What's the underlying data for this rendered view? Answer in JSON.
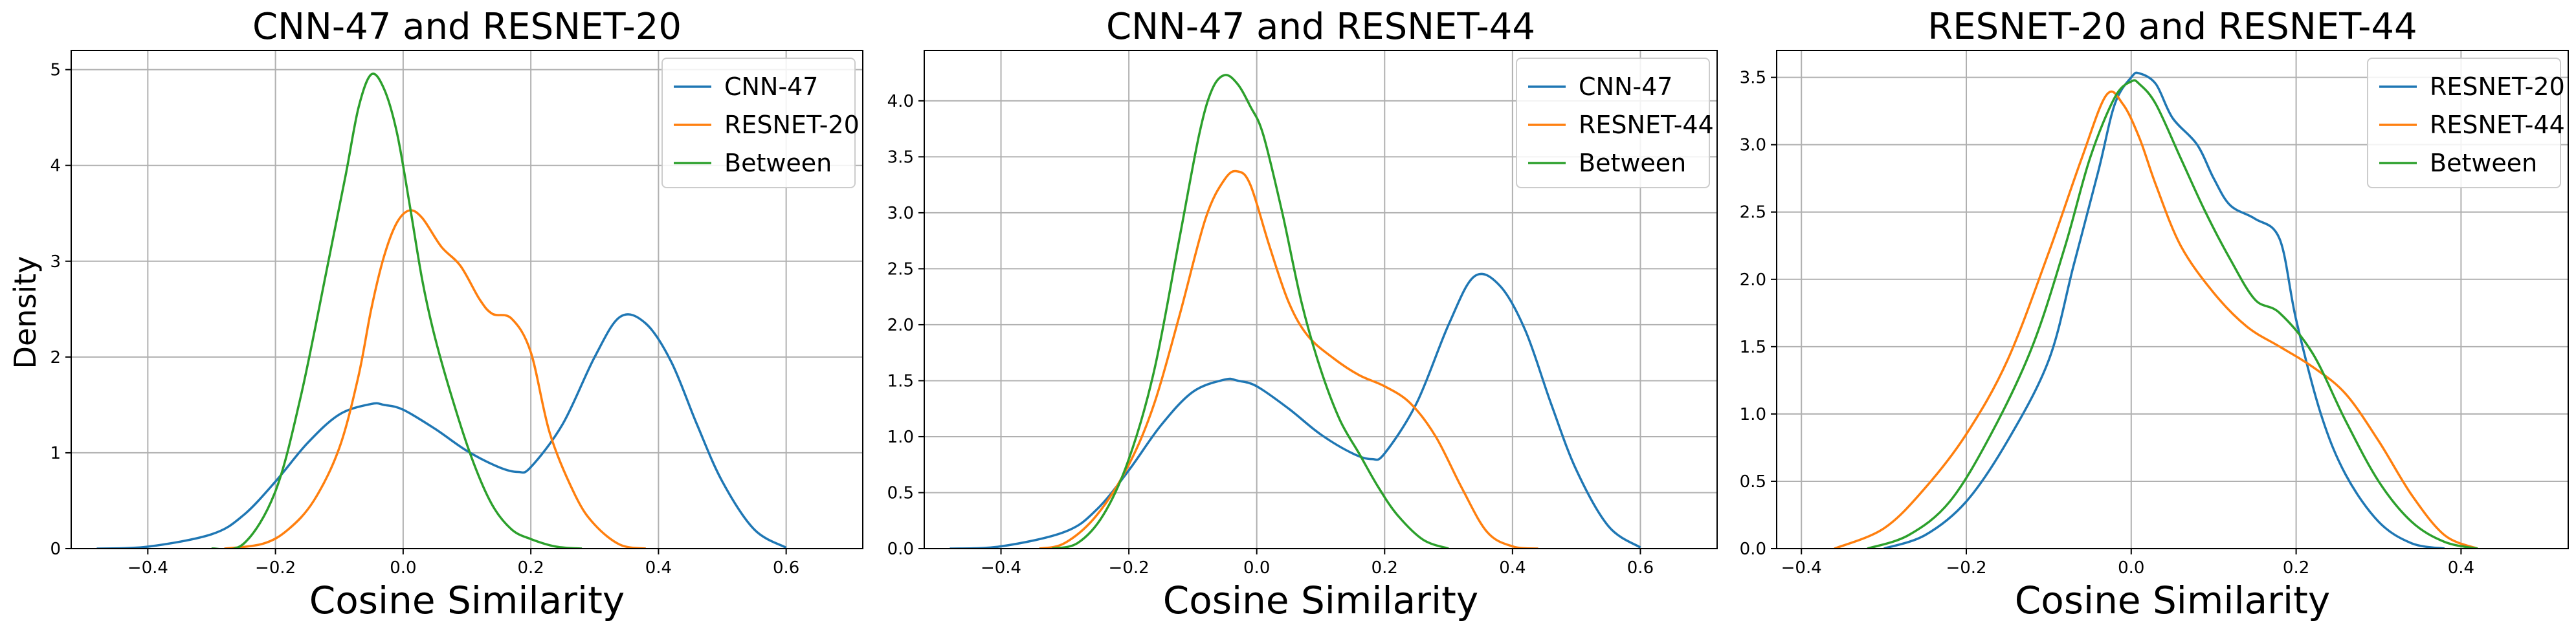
{
  "figure": {
    "ylabel": "Density"
  },
  "chart_data": [
    {
      "type": "line",
      "title": "CNN-47 and RESNET-20",
      "xlabel": "Cosine Similarity",
      "ylabel": "Density",
      "xlim": [
        -0.52,
        0.72
      ],
      "ylim": [
        0,
        5.2
      ],
      "xticks": [
        -0.4,
        -0.2,
        0.0,
        0.2,
        0.4,
        0.6
      ],
      "xtick_labels": [
        "−0.4",
        "−0.2",
        "0.0",
        "0.2",
        "0.4",
        "0.6"
      ],
      "yticks": [
        0,
        1,
        2,
        3,
        4,
        5
      ],
      "ytick_labels": [
        "0",
        "1",
        "2",
        "3",
        "4",
        "5"
      ],
      "grid": true,
      "legend_position": "top-right",
      "series": [
        {
          "name": "CNN-47",
          "color": "#1f77b4",
          "x": [
            -0.48,
            -0.4,
            -0.3,
            -0.25,
            -0.2,
            -0.15,
            -0.1,
            -0.05,
            -0.03,
            0.0,
            0.05,
            0.1,
            0.15,
            0.18,
            0.2,
            0.25,
            0.3,
            0.34,
            0.38,
            0.42,
            0.46,
            0.5,
            0.55,
            0.6
          ],
          "y": [
            0.0,
            0.02,
            0.15,
            0.35,
            0.7,
            1.1,
            1.4,
            1.51,
            1.5,
            1.45,
            1.25,
            1.02,
            0.85,
            0.8,
            0.85,
            1.3,
            2.0,
            2.42,
            2.35,
            1.95,
            1.3,
            0.7,
            0.2,
            0.01
          ]
        },
        {
          "name": "RESNET-20",
          "color": "#ff7f0e",
          "x": [
            -0.28,
            -0.22,
            -0.18,
            -0.14,
            -0.1,
            -0.07,
            -0.05,
            -0.03,
            -0.01,
            0.01,
            0.03,
            0.06,
            0.09,
            0.12,
            0.14,
            0.17,
            0.2,
            0.23,
            0.27,
            0.3,
            0.34,
            0.38
          ],
          "y": [
            0.0,
            0.05,
            0.2,
            0.5,
            1.05,
            1.8,
            2.5,
            3.05,
            3.4,
            3.53,
            3.45,
            3.15,
            2.95,
            2.6,
            2.45,
            2.4,
            2.05,
            1.2,
            0.55,
            0.25,
            0.04,
            0.0
          ]
        },
        {
          "name": "Between",
          "color": "#2ca02c",
          "x": [
            -0.3,
            -0.25,
            -0.2,
            -0.16,
            -0.12,
            -0.09,
            -0.07,
            -0.05,
            -0.03,
            -0.01,
            0.01,
            0.03,
            0.05,
            0.08,
            0.11,
            0.14,
            0.17,
            0.2,
            0.24,
            0.28
          ],
          "y": [
            0.0,
            0.05,
            0.6,
            1.6,
            2.9,
            3.9,
            4.6,
            4.95,
            4.8,
            4.35,
            3.6,
            2.8,
            2.2,
            1.5,
            0.9,
            0.45,
            0.2,
            0.1,
            0.02,
            0.0
          ]
        }
      ]
    },
    {
      "type": "line",
      "title": "CNN-47 and RESNET-44",
      "xlabel": "Cosine Similarity",
      "ylabel": "",
      "xlim": [
        -0.52,
        0.72
      ],
      "ylim": [
        0,
        4.45
      ],
      "xticks": [
        -0.4,
        -0.2,
        0.0,
        0.2,
        0.4,
        0.6
      ],
      "xtick_labels": [
        "−0.4",
        "−0.2",
        "0.0",
        "0.2",
        "0.4",
        "0.6"
      ],
      "yticks": [
        0,
        0.5,
        1.0,
        1.5,
        2.0,
        2.5,
        3.0,
        3.5,
        4.0
      ],
      "ytick_labels": [
        "0.0",
        "0.5",
        "1.0",
        "1.5",
        "2.0",
        "2.5",
        "3.0",
        "3.5",
        "4.0"
      ],
      "grid": true,
      "legend_position": "top-right",
      "series": [
        {
          "name": "CNN-47",
          "color": "#1f77b4",
          "x": [
            -0.48,
            -0.4,
            -0.3,
            -0.25,
            -0.2,
            -0.15,
            -0.1,
            -0.05,
            -0.03,
            0.0,
            0.05,
            0.1,
            0.15,
            0.18,
            0.2,
            0.25,
            0.3,
            0.34,
            0.38,
            0.42,
            0.46,
            0.5,
            0.55,
            0.6
          ],
          "y": [
            0.0,
            0.02,
            0.15,
            0.35,
            0.7,
            1.1,
            1.4,
            1.51,
            1.5,
            1.45,
            1.25,
            1.02,
            0.85,
            0.8,
            0.85,
            1.3,
            2.0,
            2.43,
            2.35,
            1.95,
            1.3,
            0.7,
            0.2,
            0.01
          ]
        },
        {
          "name": "RESNET-44",
          "color": "#ff7f0e",
          "x": [
            -0.34,
            -0.3,
            -0.25,
            -0.2,
            -0.16,
            -0.12,
            -0.08,
            -0.05,
            -0.03,
            -0.01,
            0.02,
            0.05,
            0.08,
            0.12,
            0.16,
            0.2,
            0.24,
            0.28,
            0.32,
            0.36,
            0.4,
            0.44
          ],
          "y": [
            0.0,
            0.05,
            0.3,
            0.75,
            1.3,
            2.1,
            2.95,
            3.3,
            3.37,
            3.25,
            2.7,
            2.2,
            1.9,
            1.7,
            1.55,
            1.45,
            1.3,
            1.0,
            0.55,
            0.15,
            0.02,
            0.0
          ]
        },
        {
          "name": "Between",
          "color": "#2ca02c",
          "x": [
            -0.32,
            -0.28,
            -0.24,
            -0.2,
            -0.16,
            -0.12,
            -0.09,
            -0.07,
            -0.05,
            -0.03,
            -0.01,
            0.01,
            0.04,
            0.07,
            0.1,
            0.13,
            0.16,
            0.19,
            0.22,
            0.26,
            0.3
          ],
          "y": [
            0.0,
            0.05,
            0.3,
            0.8,
            1.6,
            2.8,
            3.7,
            4.1,
            4.23,
            4.15,
            3.95,
            3.7,
            3.0,
            2.2,
            1.6,
            1.15,
            0.85,
            0.55,
            0.3,
            0.08,
            0.0
          ]
        }
      ]
    },
    {
      "type": "line",
      "title": "RESNET-20 and RESNET-44",
      "xlabel": "Cosine Similarity",
      "ylabel": "",
      "xlim": [
        -0.43,
        0.53
      ],
      "ylim": [
        0,
        3.7
      ],
      "xticks": [
        -0.4,
        -0.2,
        0.0,
        0.2,
        0.4
      ],
      "xtick_labels": [
        "−0.4",
        "−0.2",
        "0.0",
        "0.2",
        "0.4"
      ],
      "yticks": [
        0,
        0.5,
        1.0,
        1.5,
        2.0,
        2.5,
        3.0,
        3.5
      ],
      "ytick_labels": [
        "0.0",
        "0.5",
        "1.0",
        "1.5",
        "2.0",
        "2.5",
        "3.0",
        "3.5"
      ],
      "grid": true,
      "legend_position": "top-right",
      "series": [
        {
          "name": "RESNET-20",
          "color": "#1f77b4",
          "x": [
            -0.3,
            -0.25,
            -0.2,
            -0.15,
            -0.1,
            -0.07,
            -0.04,
            -0.02,
            0.0,
            0.01,
            0.03,
            0.05,
            0.08,
            0.1,
            0.12,
            0.15,
            0.18,
            0.2,
            0.23,
            0.26,
            0.3,
            0.34,
            0.38
          ],
          "y": [
            0.0,
            0.1,
            0.35,
            0.8,
            1.4,
            2.1,
            2.8,
            3.3,
            3.5,
            3.53,
            3.45,
            3.2,
            3.0,
            2.75,
            2.55,
            2.45,
            2.3,
            1.7,
            1.0,
            0.55,
            0.2,
            0.04,
            0.0
          ]
        },
        {
          "name": "RESNET-44",
          "color": "#ff7f0e",
          "x": [
            -0.36,
            -0.3,
            -0.25,
            -0.2,
            -0.15,
            -0.1,
            -0.06,
            -0.03,
            -0.01,
            0.01,
            0.03,
            0.06,
            0.1,
            0.14,
            0.18,
            0.22,
            0.26,
            0.3,
            0.34,
            0.38,
            0.42
          ],
          "y": [
            0.0,
            0.15,
            0.45,
            0.85,
            1.4,
            2.2,
            2.9,
            3.37,
            3.3,
            3.05,
            2.7,
            2.25,
            1.9,
            1.65,
            1.5,
            1.35,
            1.15,
            0.8,
            0.4,
            0.1,
            0.0
          ]
        },
        {
          "name": "Between",
          "color": "#2ca02c",
          "x": [
            -0.32,
            -0.27,
            -0.22,
            -0.17,
            -0.12,
            -0.08,
            -0.05,
            -0.02,
            0.0,
            0.01,
            0.03,
            0.06,
            0.09,
            0.12,
            0.15,
            0.18,
            0.22,
            0.26,
            0.3,
            0.34,
            0.38,
            0.42
          ],
          "y": [
            0.0,
            0.1,
            0.35,
            0.85,
            1.5,
            2.25,
            2.9,
            3.35,
            3.47,
            3.45,
            3.3,
            2.9,
            2.5,
            2.15,
            1.85,
            1.75,
            1.45,
            0.95,
            0.5,
            0.2,
            0.05,
            0.0
          ]
        }
      ]
    }
  ]
}
